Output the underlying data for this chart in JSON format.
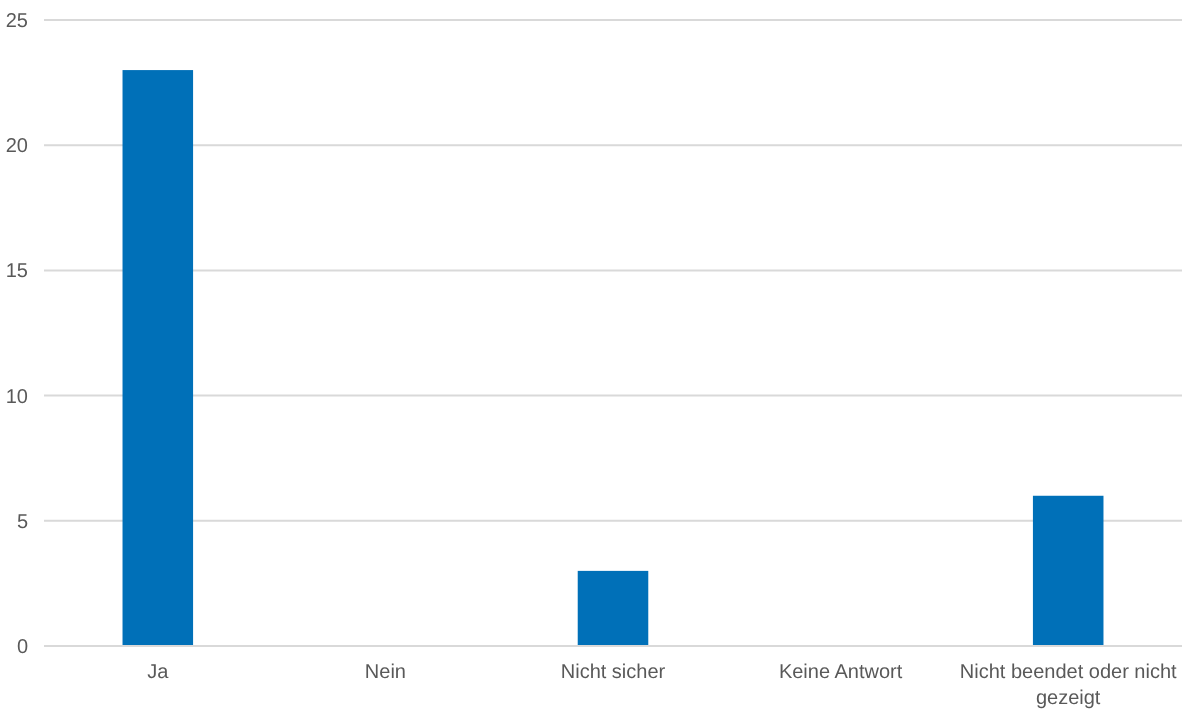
{
  "chart_data": {
    "type": "bar",
    "categories": [
      "Ja",
      "Nein",
      "Nicht sicher",
      "Keine Antwort",
      "Nicht beendet oder nicht gezeigt"
    ],
    "values": [
      23,
      0,
      3,
      0,
      6
    ],
    "color": "#0070b8",
    "ylim": [
      0,
      25
    ],
    "yticks": [
      0,
      5,
      10,
      15,
      20,
      25
    ],
    "grid": "y"
  }
}
